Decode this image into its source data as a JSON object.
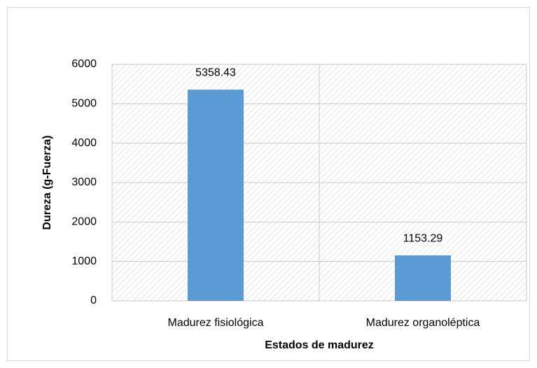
{
  "chart_data": {
    "type": "bar",
    "x_label": "Estados de madurez",
    "y_label": "Dureza (g-Fuerza)",
    "categories": [
      "Madurez fisiológica",
      "Madurez organoléptica"
    ],
    "values": [
      5358.43,
      1153.29
    ],
    "color": "#5b9bd5",
    "ylim": [
      0,
      6000
    ],
    "yticks": [
      0,
      1000,
      2000,
      3000,
      4000,
      5000,
      6000
    ],
    "grid": true
  }
}
